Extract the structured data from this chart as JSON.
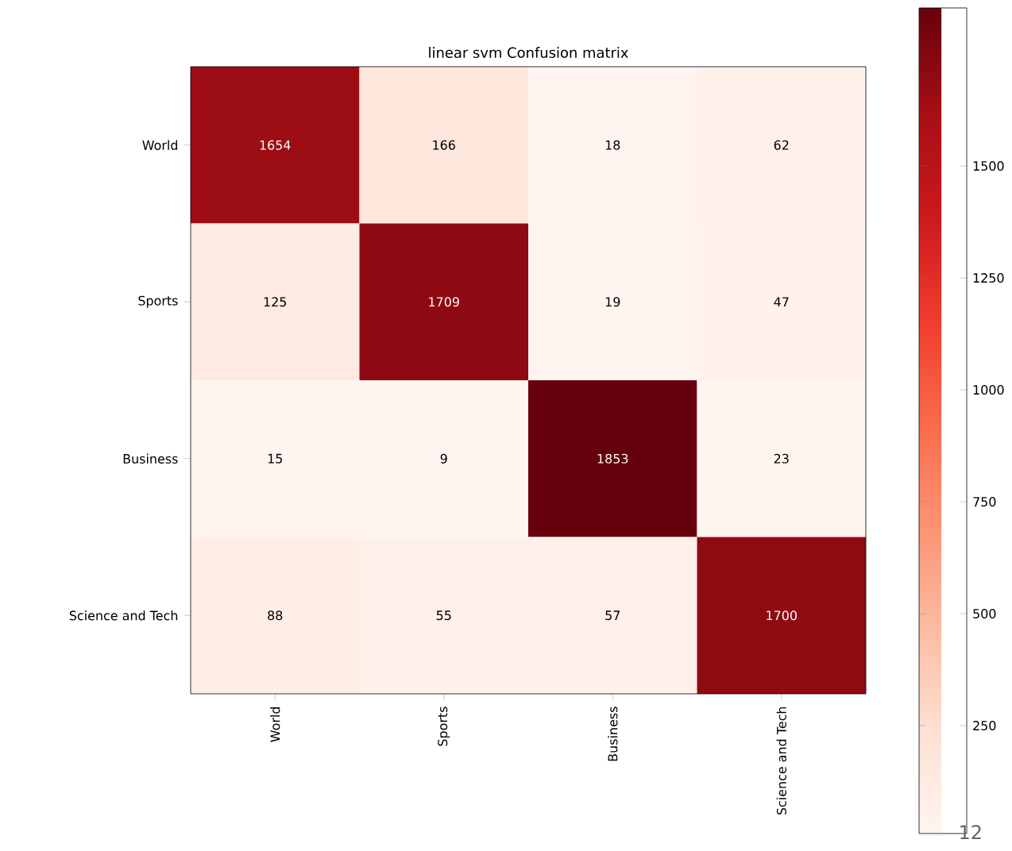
{
  "chart_data": {
    "type": "heatmap",
    "title": "linear svm Confusion matrix",
    "categories": [
      "World",
      "Sports",
      "Business",
      "Science and Tech"
    ],
    "y_categories": [
      "World",
      "Sports",
      "Business",
      "Science and Tech"
    ],
    "cells": [
      [
        1654,
        166,
        18,
        62
      ],
      [
        125,
        1709,
        19,
        47
      ],
      [
        15,
        9,
        1853,
        23
      ],
      [
        88,
        55,
        57,
        1700
      ]
    ],
    "data_labels": true,
    "clim": [
      9,
      1853
    ],
    "cticks": [
      250,
      500,
      750,
      1000,
      1250,
      1500
    ],
    "annotations": [
      "12"
    ]
  }
}
